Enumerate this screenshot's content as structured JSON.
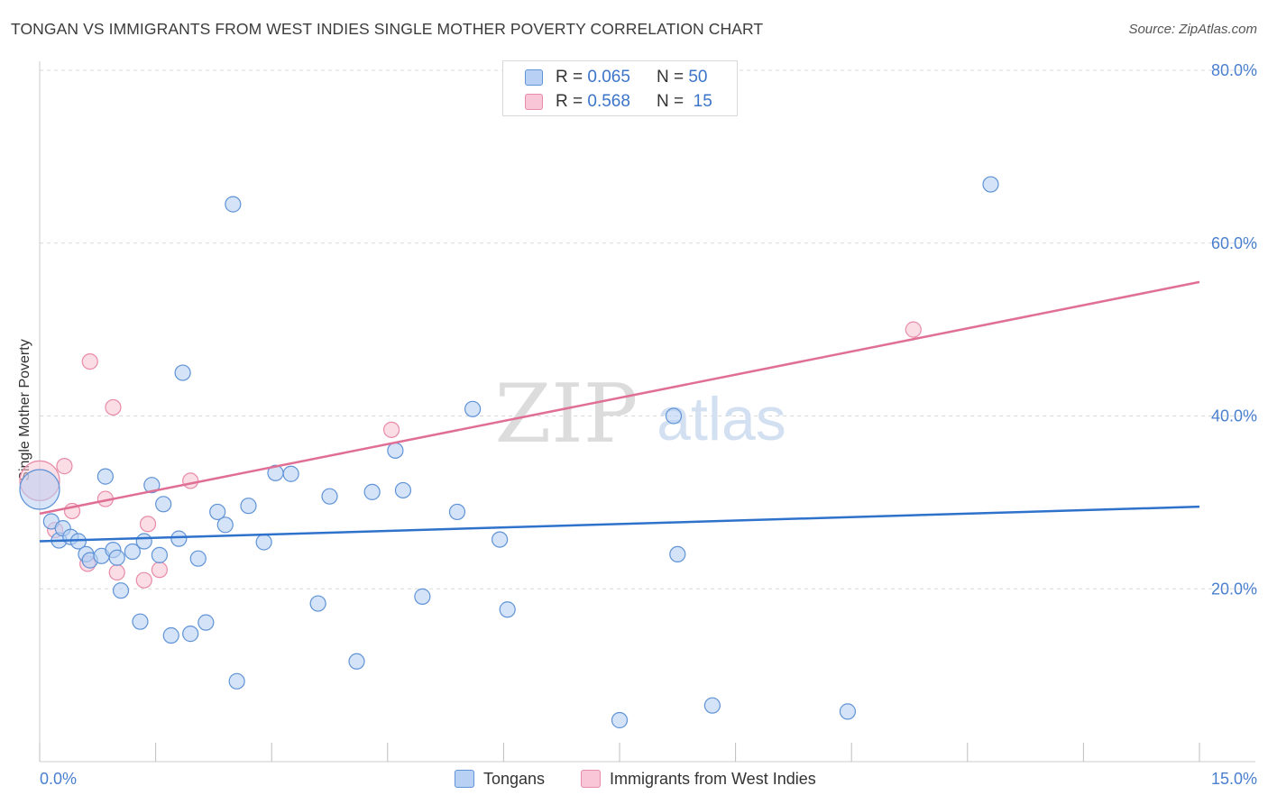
{
  "title": "TONGAN VS IMMIGRANTS FROM WEST INDIES SINGLE MOTHER POVERTY CORRELATION CHART",
  "source": "Source: ZipAtlas.com",
  "watermark": {
    "zip": "ZIP",
    "atlas": "atlas"
  },
  "legend": {
    "rows": [
      {
        "r_label": "R =",
        "r_value": "0.065",
        "n_label": "N =",
        "n_value": "50"
      },
      {
        "r_label": "R =",
        "r_value": "0.568",
        "n_label": "N =",
        "n_value": "15"
      }
    ]
  },
  "colors": {
    "blue_fill": "#b8d0f3",
    "blue_stroke": "#5f93d6",
    "blue_line": "#2f72cc",
    "pink_fill": "#f8c6d6",
    "pink_stroke": "#e88aa8",
    "pink_line": "#e06f95",
    "axis_text": "#4a7fcf",
    "grid": "#d9d9d9"
  },
  "chart_data": {
    "type": "scatter",
    "title": "TONGAN VS IMMIGRANTS FROM WEST INDIES SINGLE MOTHER POVERTY CORRELATION CHART",
    "xlabel": "",
    "ylabel": "Single Mother Poverty",
    "xlim": [
      0,
      15
    ],
    "ylim": [
      0,
      80
    ],
    "x_tick_labels": [
      "0.0%",
      "15.0%"
    ],
    "y_ticks": [
      20,
      40,
      60,
      80
    ],
    "y_tick_labels": [
      "20.0%",
      "40.0%",
      "60.0%",
      "80.0%"
    ],
    "grid": true,
    "legend_position": "top-center",
    "series": [
      {
        "name": "Tongans",
        "r": 0.065,
        "n": 50,
        "trend": {
          "x0": 0,
          "y0": 25.5,
          "x1": 15,
          "y1": 29.5
        },
        "points": [
          {
            "x": 0.0,
            "y": 31.5,
            "big": true
          },
          {
            "x": 0.15,
            "y": 27.8
          },
          {
            "x": 0.25,
            "y": 25.6
          },
          {
            "x": 0.3,
            "y": 27.0
          },
          {
            "x": 0.4,
            "y": 26.0
          },
          {
            "x": 0.5,
            "y": 25.5
          },
          {
            "x": 0.6,
            "y": 24.0
          },
          {
            "x": 0.65,
            "y": 23.3
          },
          {
            "x": 0.8,
            "y": 23.8
          },
          {
            "x": 0.85,
            "y": 33.0
          },
          {
            "x": 0.95,
            "y": 24.5
          },
          {
            "x": 1.0,
            "y": 23.6
          },
          {
            "x": 1.05,
            "y": 19.8
          },
          {
            "x": 1.2,
            "y": 24.3
          },
          {
            "x": 1.3,
            "y": 16.2
          },
          {
            "x": 1.35,
            "y": 25.5
          },
          {
            "x": 1.45,
            "y": 32.0
          },
          {
            "x": 1.55,
            "y": 23.9
          },
          {
            "x": 1.6,
            "y": 29.8
          },
          {
            "x": 1.7,
            "y": 14.6
          },
          {
            "x": 1.8,
            "y": 25.8
          },
          {
            "x": 1.85,
            "y": 45.0
          },
          {
            "x": 1.95,
            "y": 14.8
          },
          {
            "x": 2.05,
            "y": 23.5
          },
          {
            "x": 2.15,
            "y": 16.1
          },
          {
            "x": 2.3,
            "y": 28.9
          },
          {
            "x": 2.4,
            "y": 27.4
          },
          {
            "x": 2.5,
            "y": 64.5
          },
          {
            "x": 2.55,
            "y": 9.3
          },
          {
            "x": 2.7,
            "y": 29.6
          },
          {
            "x": 2.9,
            "y": 25.4
          },
          {
            "x": 3.05,
            "y": 33.4
          },
          {
            "x": 3.25,
            "y": 33.3
          },
          {
            "x": 3.6,
            "y": 18.3
          },
          {
            "x": 3.75,
            "y": 30.7
          },
          {
            "x": 4.1,
            "y": 11.6
          },
          {
            "x": 4.3,
            "y": 31.2
          },
          {
            "x": 4.6,
            "y": 36.0
          },
          {
            "x": 4.7,
            "y": 31.4
          },
          {
            "x": 4.95,
            "y": 19.1
          },
          {
            "x": 5.4,
            "y": 28.9
          },
          {
            "x": 5.6,
            "y": 40.8
          },
          {
            "x": 5.95,
            "y": 25.7
          },
          {
            "x": 6.05,
            "y": 17.6
          },
          {
            "x": 7.5,
            "y": 4.8
          },
          {
            "x": 8.2,
            "y": 40.0
          },
          {
            "x": 8.25,
            "y": 24.0
          },
          {
            "x": 8.7,
            "y": 6.5
          },
          {
            "x": 10.45,
            "y": 5.8
          },
          {
            "x": 12.3,
            "y": 66.8
          }
        ]
      },
      {
        "name": "Immigrants from West Indies",
        "r": 0.568,
        "n": 15,
        "trend": {
          "x0": 0,
          "y0": 28.7,
          "x1": 15,
          "y1": 55.5
        },
        "points": [
          {
            "x": 0.0,
            "y": 32.5,
            "big": true
          },
          {
            "x": 0.2,
            "y": 26.8
          },
          {
            "x": 0.32,
            "y": 34.2
          },
          {
            "x": 0.42,
            "y": 29.0
          },
          {
            "x": 0.62,
            "y": 22.9
          },
          {
            "x": 0.65,
            "y": 46.3
          },
          {
            "x": 0.85,
            "y": 30.4
          },
          {
            "x": 0.95,
            "y": 41.0
          },
          {
            "x": 1.0,
            "y": 21.9
          },
          {
            "x": 1.35,
            "y": 21.0
          },
          {
            "x": 1.4,
            "y": 27.5
          },
          {
            "x": 1.55,
            "y": 22.2
          },
          {
            "x": 1.95,
            "y": 32.5
          },
          {
            "x": 4.55,
            "y": 38.4
          },
          {
            "x": 11.3,
            "y": 50.0
          }
        ]
      }
    ]
  },
  "bottom_legend": {
    "tongans": "Tongans",
    "west_indies": "Immigrants from West Indies"
  }
}
